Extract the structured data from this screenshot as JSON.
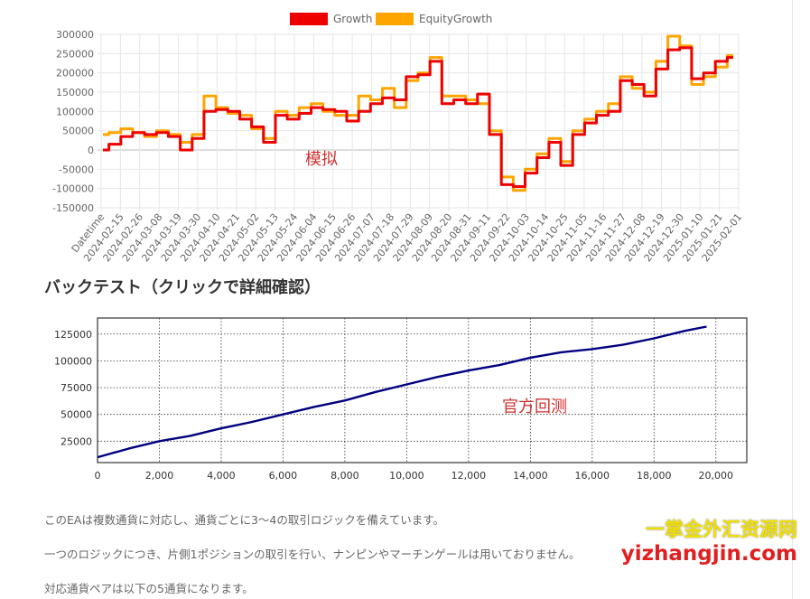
{
  "growth_chart": {
    "annotation": "模拟",
    "chart_data": {
      "type": "line",
      "xlabel": "",
      "ylabel": "",
      "ylim": [
        -150000,
        300000
      ],
      "yticks": [
        -150000,
        -100000,
        -50000,
        0,
        50000,
        100000,
        150000,
        200000,
        250000,
        300000
      ],
      "ytick_labels": [
        "-150000",
        "-100000",
        "-50000",
        "0",
        "50000",
        "100000",
        "150000",
        "200000",
        "250000",
        "300000"
      ],
      "x_tick_labels": [
        "Datetime",
        "2024-02-15",
        "2024-02-26",
        "2024-03-08",
        "2024-03-19",
        "2024-03-30",
        "2024-04-10",
        "2024-04-21",
        "2024-05-02",
        "2024-05-13",
        "2024-05-24",
        "2024-06-04",
        "2024-06-15",
        "2024-06-26",
        "2024-07-07",
        "2024-07-18",
        "2024-07-29",
        "2024-08-09",
        "2024-08-20",
        "2024-08-31",
        "2024-09-11",
        "2024-09-22",
        "2024-10-03",
        "2024-10-14",
        "2024-10-25",
        "2024-11-05",
        "2024-11-16",
        "2024-11-27",
        "2024-12-08",
        "2024-12-19",
        "2024-12-30",
        "2025-01-10",
        "2025-01-21",
        "2025-02-01"
      ],
      "legend_position": "top",
      "grid": true,
      "series": [
        {
          "name": "Growth",
          "color": "#ee0000",
          "values": [
            0,
            15000,
            35000,
            45000,
            40000,
            45000,
            35000,
            0,
            30000,
            100000,
            105000,
            100000,
            80000,
            60000,
            20000,
            90000,
            80000,
            95000,
            110000,
            105000,
            100000,
            75000,
            100000,
            120000,
            135000,
            130000,
            190000,
            195000,
            230000,
            120000,
            130000,
            120000,
            145000,
            40000,
            -90000,
            -95000,
            -60000,
            -20000,
            20000,
            -40000,
            40000,
            70000,
            90000,
            100000,
            180000,
            170000,
            140000,
            210000,
            260000,
            265000,
            185000,
            200000,
            230000,
            240000
          ]
        },
        {
          "name": "EquityGrowth",
          "color": "#ffa500",
          "values": [
            40000,
            45000,
            55000,
            45000,
            35000,
            50000,
            40000,
            20000,
            40000,
            140000,
            110000,
            95000,
            90000,
            55000,
            30000,
            100000,
            90000,
            110000,
            120000,
            100000,
            90000,
            90000,
            140000,
            130000,
            160000,
            110000,
            180000,
            200000,
            240000,
            140000,
            140000,
            130000,
            120000,
            50000,
            -70000,
            -105000,
            -50000,
            -10000,
            30000,
            -30000,
            50000,
            80000,
            100000,
            120000,
            190000,
            160000,
            150000,
            230000,
            295000,
            270000,
            170000,
            190000,
            215000,
            245000
          ]
        }
      ]
    }
  },
  "backtest_section": {
    "title": "バックテスト（クリックで詳細確認）",
    "annotation": "官方回测"
  },
  "backtest_chart": {
    "chart_data": {
      "type": "line",
      "xlabel": "",
      "ylabel": "",
      "xlim": [
        0,
        21000
      ],
      "ylim": [
        5000,
        140000
      ],
      "xticks": [
        0,
        2000,
        4000,
        6000,
        8000,
        10000,
        12000,
        14000,
        16000,
        18000,
        20000
      ],
      "xtick_labels": [
        "0",
        "2,000",
        "4,000",
        "6,000",
        "8,000",
        "10,000",
        "12,000",
        "14,000",
        "16,000",
        "18,000",
        "20,000"
      ],
      "yticks": [
        25000,
        50000,
        75000,
        100000,
        125000
      ],
      "ytick_labels": [
        "25000",
        "50000",
        "75000",
        "100000",
        "125000"
      ],
      "grid": true,
      "series": [
        {
          "color": "#000080",
          "x": [
            0,
            1000,
            2000,
            3000,
            4000,
            5000,
            6000,
            7000,
            8000,
            9000,
            10000,
            11000,
            12000,
            13000,
            14000,
            15000,
            16000,
            17000,
            18000,
            19000,
            19700
          ],
          "y": [
            10000,
            18000,
            25000,
            30000,
            37000,
            43000,
            50000,
            57000,
            63000,
            71000,
            78000,
            85000,
            91000,
            96000,
            103000,
            108000,
            111000,
            115000,
            121000,
            128000,
            132000
          ]
        }
      ]
    }
  },
  "paragraphs": [
    "このEAは複数通貨に対応し、通貨ごとに3～4の取引ロジックを備えています。",
    "一つのロジックにつき、片側1ポジションの取引を行い、ナンピンやマーチンゲールは用いておりません。",
    "対応通貨ペアは以下の5通貨になります。"
  ],
  "watermark": {
    "line1": "一掌金外汇资源网",
    "line2": "yizhangjin.com"
  }
}
